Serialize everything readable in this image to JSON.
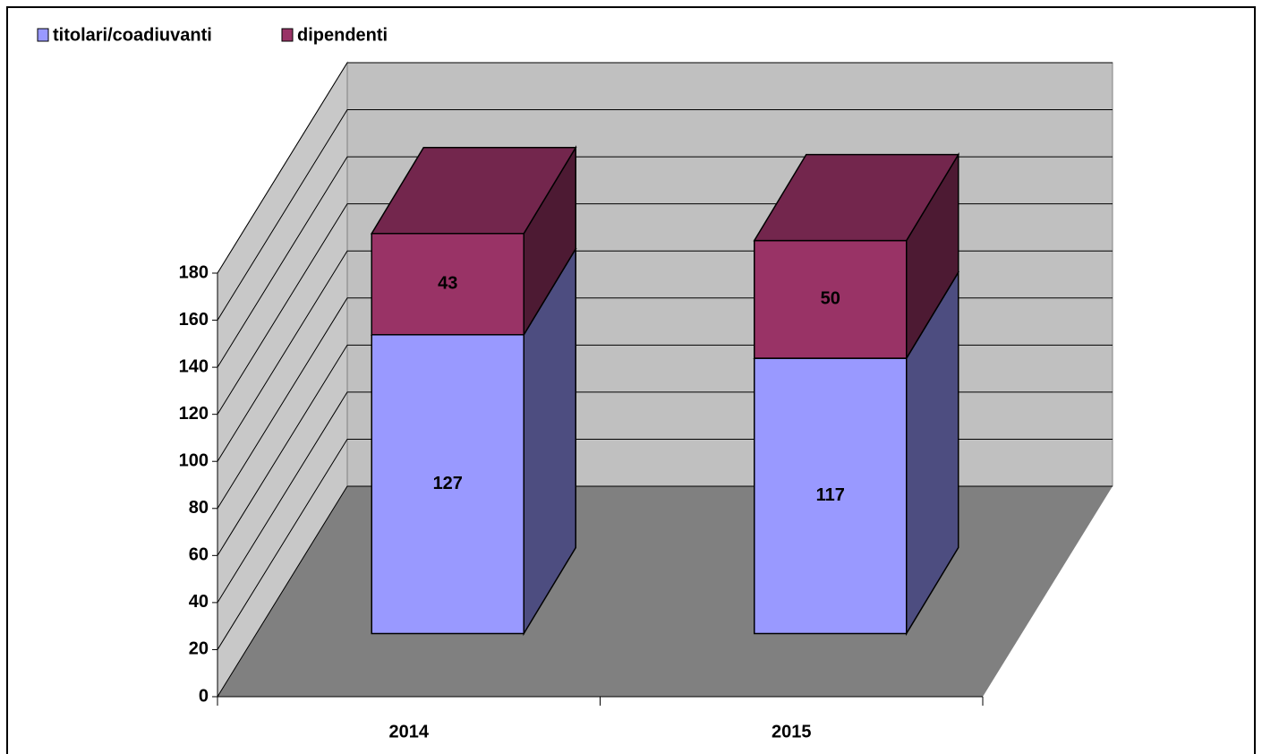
{
  "chart_data": {
    "type": "bar3d_stacked",
    "categories": [
      "2014",
      "2015"
    ],
    "series": [
      {
        "name": "titolari/coadiuvanti",
        "color": "#9999ff",
        "values": [
          127,
          117
        ]
      },
      {
        "name": "dipendenti",
        "color": "#993366",
        "values": [
          43,
          50
        ]
      }
    ],
    "ylim": [
      0,
      180
    ],
    "yticks": [
      0,
      20,
      40,
      60,
      80,
      100,
      120,
      140,
      160,
      180
    ],
    "grid": true,
    "legend": "top-left"
  }
}
